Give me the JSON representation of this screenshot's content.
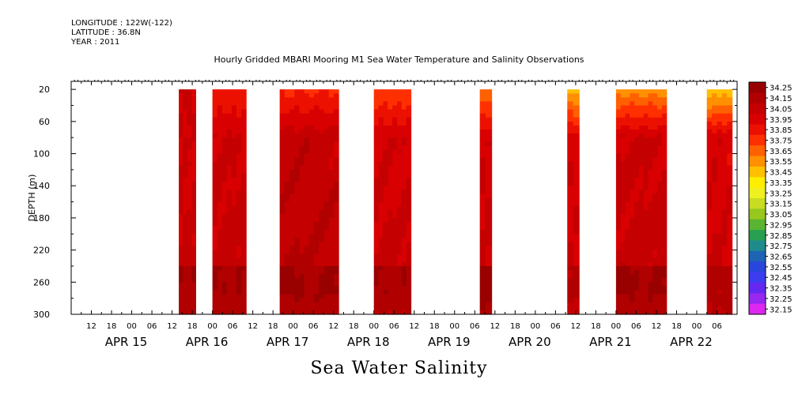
{
  "header": {
    "longitude": "LONGITUDE : 122W(-122)",
    "latitude": "LATITUDE : 36.8N",
    "year": "YEAR : 2011"
  },
  "caption": "Sea Water Salinity",
  "chart_data": {
    "type": "heatmap",
    "title": "Hourly Gridded MBARI Mooring M1 Sea Water Temperature and Salinity Observations",
    "xlabel": "",
    "ylabel": "DEPTH (m)",
    "ylim": [
      300,
      10
    ],
    "y_ticks": [
      20,
      60,
      100,
      140,
      180,
      220,
      260,
      300
    ],
    "x_hour_labels": [
      "12",
      "18",
      "00",
      "06",
      "12",
      "18",
      "00",
      "06",
      "12",
      "18",
      "00",
      "06",
      "12",
      "18",
      "00",
      "06",
      "12",
      "18",
      "00",
      "06",
      "12",
      "18",
      "00",
      "06",
      "12",
      "18",
      "00",
      "06",
      "12",
      "18",
      "00",
      "06"
    ],
    "x_date_labels": [
      "APR 15",
      "APR 16",
      "APR 17",
      "APR 18",
      "APR 19",
      "APR 20",
      "APR 21",
      "APR 22"
    ],
    "x_start": "APR 14 06:00",
    "x_end": "APR 22 12:00",
    "colorbar_levels": [
      "34.25",
      "34.15",
      "34.05",
      "33.95",
      "33.85",
      "33.75",
      "33.65",
      "33.55",
      "33.45",
      "33.35",
      "33.25",
      "33.15",
      "33.05",
      "32.95",
      "32.85",
      "32.75",
      "32.65",
      "32.55",
      "32.45",
      "32.35",
      "32.25",
      "32.15"
    ],
    "colorbar_colors": [
      "#990000",
      "#b00000",
      "#c40000",
      "#d80000",
      "#ec1000",
      "#ff3000",
      "#ff6000",
      "#ff9000",
      "#ffc000",
      "#ffee00",
      "#f0f020",
      "#c8dc20",
      "#96c81e",
      "#5ab432",
      "#28a050",
      "#1e8c8c",
      "#1e64b4",
      "#2846dc",
      "#3c3cf0",
      "#6428f0",
      "#9628f0",
      "#dc28f0"
    ],
    "series": [
      {
        "start": "APR 15 14:00",
        "end": "APR 15 19:00",
        "surface": 34.02,
        "mid": 33.99,
        "deep": 34.18
      },
      {
        "start": "APR 16 00:00",
        "end": "APR 16 10:00",
        "surface": 33.82,
        "mid": 34.0,
        "deep": 34.18
      },
      {
        "start": "APR 16 20:00",
        "end": "APR 17 13:30",
        "surface": 33.78,
        "mid": 34.05,
        "deep": 34.2
      },
      {
        "start": "APR 18 00:00",
        "end": "APR 18 11:00",
        "surface": 33.72,
        "mid": 33.98,
        "deep": 34.17
      },
      {
        "start": "APR 19 07:30",
        "end": "APR 19 11:00",
        "surface": 33.6,
        "mid": 33.97,
        "deep": 34.22
      },
      {
        "start": "APR 20 09:30",
        "end": "APR 20 13:00",
        "surface": 33.45,
        "mid": 33.95,
        "deep": 34.1
      },
      {
        "start": "APR 21 00:00",
        "end": "APR 21 15:00",
        "surface": 33.55,
        "mid": 34.0,
        "deep": 34.2
      },
      {
        "start": "APR 22 03:00",
        "end": "APR 22 10:30",
        "surface": 33.42,
        "mid": 33.95,
        "deep": 34.15
      }
    ]
  }
}
